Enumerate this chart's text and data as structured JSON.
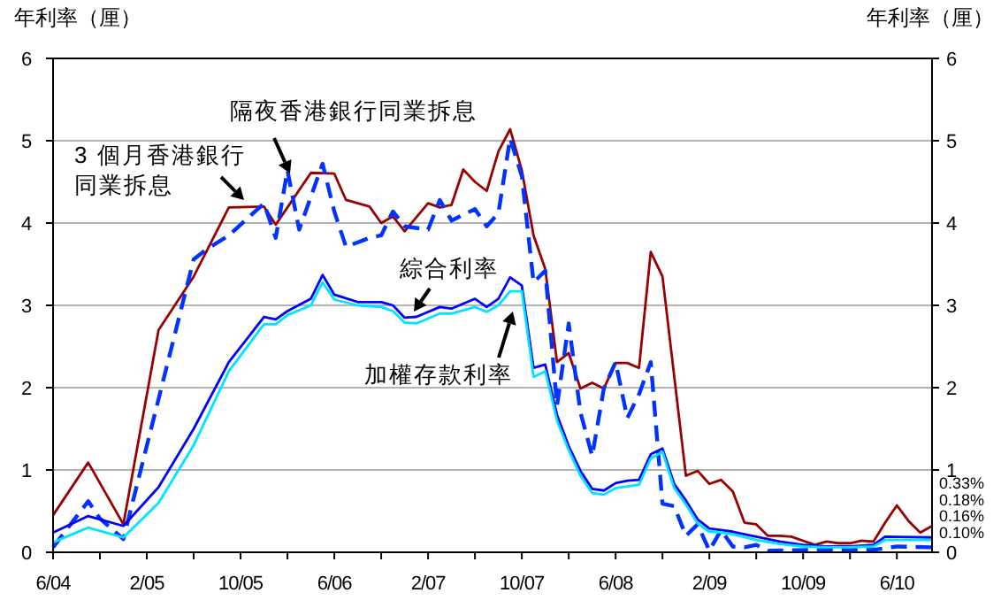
{
  "chart_data": {
    "type": "line",
    "ylabel": "年利率（厘）",
    "y2label": "年利率（厘）",
    "xlim": [
      "2004-06",
      "2010-09"
    ],
    "xticks": [
      {
        "value": "2004-06",
        "label": "6/04"
      },
      {
        "value": "2004-10",
        "label": null
      },
      {
        "value": "2005-02",
        "label": "2/05"
      },
      {
        "value": "2005-06",
        "label": null
      },
      {
        "value": "2005-10",
        "label": "10/05"
      },
      {
        "value": "2006-02",
        "label": null
      },
      {
        "value": "2006-06",
        "label": "6/06"
      },
      {
        "value": "2006-10",
        "label": null
      },
      {
        "value": "2007-02",
        "label": "2/07"
      },
      {
        "value": "2007-06",
        "label": null
      },
      {
        "value": "2007-10",
        "label": "10/07"
      },
      {
        "value": "2008-02",
        "label": null
      },
      {
        "value": "2008-06",
        "label": "6/08"
      },
      {
        "value": "2008-10",
        "label": null
      },
      {
        "value": "2009-02",
        "label": "2/09"
      },
      {
        "value": "2009-06",
        "label": null
      },
      {
        "value": "2009-10",
        "label": "10/09"
      },
      {
        "value": "2010-02",
        "label": null
      },
      {
        "value": "2010-06",
        "label": "6/10"
      }
    ],
    "ylim": [
      0,
      6
    ],
    "yticks": [
      0,
      1,
      2,
      3,
      4,
      5,
      6
    ],
    "y2lim": [
      0,
      6
    ],
    "y2ticks": [
      0,
      1,
      2,
      3,
      4,
      5,
      6
    ],
    "grid": "y",
    "legend": false,
    "annotations": [
      "0.33%",
      "0.18%",
      "0.16%",
      "0.10%"
    ],
    "series": [
      {
        "name": "3 個月香港銀行同業拆息",
        "color": "#990000",
        "line_style": "solid",
        "x": [
          "2004-06",
          "2004-09",
          "2004-12",
          "2005-03",
          "2005-06",
          "2005-09",
          "2005-12",
          "2006-01",
          "2006-04",
          "2006-06",
          "2006-07",
          "2006-09",
          "2006-10",
          "2006-11",
          "2006-12",
          "2007-02",
          "2007-03",
          "2007-04",
          "2007-05",
          "2007-06",
          "2007-07",
          "2007-08",
          "2007-09",
          "2007-10",
          "2007-11",
          "2007-12",
          "2008-01",
          "2008-02",
          "2008-03",
          "2008-04",
          "2008-05",
          "2008-06",
          "2008-07",
          "2008-08",
          "2008-09",
          "2008-10",
          "2008-12",
          "2009-01",
          "2009-02",
          "2009-03",
          "2009-04",
          "2009-05",
          "2009-06",
          "2009-07",
          "2009-08",
          "2009-09",
          "2009-10",
          "2009-11",
          "2009-12",
          "2010-01",
          "2010-02",
          "2010-03",
          "2010-04",
          "2010-05",
          "2010-06",
          "2010-07",
          "2010-08",
          "2010-09"
        ],
        "values": [
          0.45,
          1.09,
          0.34,
          2.7,
          3.35,
          4.19,
          4.2,
          3.98,
          4.61,
          4.6,
          4.28,
          4.2,
          4.0,
          4.08,
          3.9,
          4.24,
          4.19,
          4.22,
          4.65,
          4.5,
          4.39,
          4.87,
          5.14,
          4.64,
          3.85,
          3.44,
          2.31,
          2.42,
          1.99,
          2.06,
          1.99,
          2.3,
          2.3,
          2.24,
          3.65,
          3.35,
          0.93,
          0.99,
          0.83,
          0.88,
          0.74,
          0.36,
          0.34,
          0.2,
          0.2,
          0.19,
          0.14,
          0.09,
          0.13,
          0.11,
          0.11,
          0.14,
          0.13,
          0.36,
          0.57,
          0.38,
          0.24,
          0.32
        ]
      },
      {
        "name": "隔夜香港銀行同業拆息",
        "color": "#0033ff",
        "line_style": "dashed",
        "x": [
          "2004-06",
          "2004-09",
          "2004-10",
          "2004-12",
          "2005-06",
          "2005-07",
          "2005-09",
          "2005-12",
          "2006-01",
          "2006-02",
          "2006-03",
          "2006-05",
          "2006-06",
          "2006-07",
          "2006-09",
          "2006-10",
          "2006-11",
          "2006-12",
          "2007-02",
          "2007-03",
          "2007-04",
          "2007-06",
          "2007-07",
          "2007-08",
          "2007-09",
          "2007-10",
          "2007-11",
          "2007-12",
          "2008-01",
          "2008-02",
          "2008-03",
          "2008-04",
          "2008-05",
          "2008-06",
          "2008-07",
          "2008-08",
          "2008-09",
          "2008-10",
          "2008-11",
          "2008-12",
          "2009-01",
          "2009-02",
          "2009-03",
          "2009-04",
          "2009-05",
          "2009-06",
          "2009-07",
          "2009-12",
          "2010-04",
          "2010-06",
          "2010-09"
        ],
        "values": [
          0.06,
          0.62,
          0.41,
          0.16,
          3.56,
          3.67,
          3.85,
          4.24,
          3.82,
          4.64,
          3.92,
          4.72,
          4.14,
          3.71,
          3.82,
          3.85,
          4.14,
          3.96,
          3.92,
          4.28,
          4.03,
          4.17,
          3.96,
          4.12,
          5.03,
          4.57,
          3.28,
          3.42,
          1.78,
          2.78,
          1.7,
          1.17,
          1.99,
          2.31,
          1.63,
          1.92,
          2.31,
          0.59,
          0.56,
          0.2,
          0.34,
          0.02,
          0.27,
          0.07,
          0.06,
          0.09,
          0.02,
          0.03,
          0.03,
          0.07,
          0.06
        ]
      },
      {
        "name": "綜合利率",
        "color": "#0000ff",
        "line_style": "solid",
        "x": [
          "2004-06",
          "2004-09",
          "2004-12",
          "2005-03",
          "2005-06",
          "2005-09",
          "2005-12",
          "2006-01",
          "2006-02",
          "2006-04",
          "2006-05",
          "2006-06",
          "2006-08",
          "2006-10",
          "2006-11",
          "2006-12",
          "2007-01",
          "2007-03",
          "2007-04",
          "2007-06",
          "2007-07",
          "2007-08",
          "2007-09",
          "2007-10",
          "2007-11",
          "2007-12",
          "2008-01",
          "2008-02",
          "2008-03",
          "2008-04",
          "2008-05",
          "2008-06",
          "2008-07",
          "2008-08",
          "2008-09",
          "2008-10",
          "2008-11",
          "2008-12",
          "2009-01",
          "2009-02",
          "2009-03",
          "2009-04",
          "2009-06",
          "2009-08",
          "2009-10",
          "2009-12",
          "2010-02",
          "2010-04",
          "2010-05",
          "2010-09"
        ],
        "values": [
          0.24,
          0.44,
          0.32,
          0.79,
          1.5,
          2.31,
          2.86,
          2.83,
          2.93,
          3.08,
          3.37,
          3.13,
          3.04,
          3.04,
          3.0,
          2.85,
          2.86,
          2.98,
          2.96,
          3.08,
          2.98,
          3.08,
          3.34,
          3.24,
          2.24,
          2.28,
          1.67,
          1.29,
          0.99,
          0.77,
          0.75,
          0.84,
          0.87,
          0.88,
          1.19,
          1.26,
          0.83,
          0.63,
          0.4,
          0.29,
          0.27,
          0.25,
          0.19,
          0.13,
          0.09,
          0.07,
          0.07,
          0.09,
          0.19,
          0.18
        ]
      },
      {
        "name": "加權存款利率",
        "color": "#00e5ff",
        "line_style": "solid",
        "x": [
          "2004-06",
          "2004-09",
          "2004-12",
          "2005-03",
          "2005-06",
          "2005-09",
          "2005-12",
          "2006-01",
          "2006-02",
          "2006-04",
          "2006-05",
          "2006-06",
          "2006-08",
          "2006-10",
          "2006-11",
          "2006-12",
          "2007-01",
          "2007-03",
          "2007-04",
          "2007-06",
          "2007-07",
          "2007-08",
          "2007-09",
          "2007-10",
          "2007-11",
          "2007-12",
          "2008-01",
          "2008-02",
          "2008-03",
          "2008-04",
          "2008-05",
          "2008-06",
          "2008-07",
          "2008-08",
          "2008-09",
          "2008-10",
          "2008-11",
          "2008-12",
          "2009-01",
          "2009-02",
          "2009-03",
          "2009-04",
          "2009-06",
          "2009-08",
          "2009-10",
          "2009-12",
          "2010-02",
          "2010-04",
          "2010-05",
          "2010-09"
        ],
        "values": [
          0.12,
          0.3,
          0.18,
          0.6,
          1.3,
          2.2,
          2.77,
          2.77,
          2.88,
          3.0,
          3.28,
          3.07,
          3.0,
          2.98,
          2.93,
          2.79,
          2.78,
          2.9,
          2.9,
          2.98,
          2.92,
          3.0,
          3.17,
          3.17,
          2.13,
          2.2,
          1.6,
          1.24,
          0.93,
          0.72,
          0.7,
          0.78,
          0.8,
          0.82,
          1.14,
          1.22,
          0.78,
          0.58,
          0.35,
          0.25,
          0.24,
          0.22,
          0.15,
          0.1,
          0.07,
          0.06,
          0.06,
          0.07,
          0.15,
          0.15
        ]
      }
    ]
  }
}
